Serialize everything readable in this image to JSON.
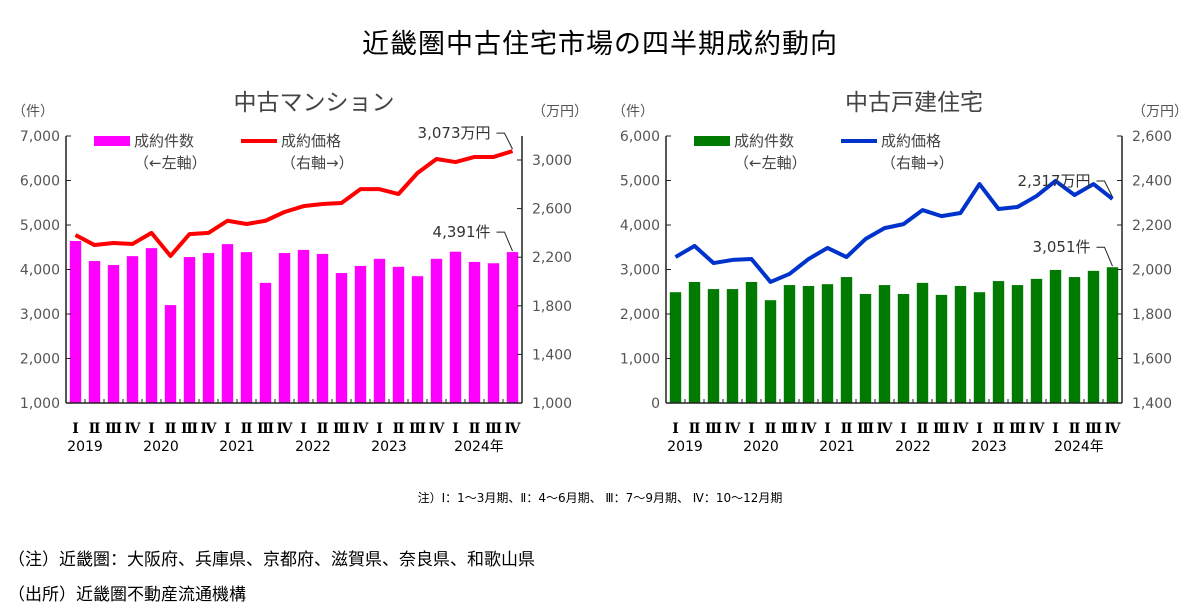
{
  "title": "近畿圏中古住宅市場の四半期成約動向",
  "quarter_note": "注）Ⅰ：1～3月期、Ⅱ：4～6月期、 Ⅲ：7～9月期、 Ⅳ：10～12月期",
  "region_note": "（注）近畿圏：大阪府、兵庫県、京都府、滋賀県、奈良県、和歌山県",
  "source_note": "（出所）近畿圏不動産流通機構",
  "chart_data": [
    {
      "type": "bar",
      "title": "中古マンション",
      "left_axis_unit": "（件）",
      "right_axis_unit": "（万円）",
      "quarter_labels": [
        "Ⅰ",
        "Ⅱ",
        "Ⅲ",
        "Ⅳ",
        "Ⅰ",
        "Ⅱ",
        "Ⅲ",
        "Ⅳ",
        "Ⅰ",
        "Ⅱ",
        "Ⅲ",
        "Ⅳ",
        "Ⅰ",
        "Ⅱ",
        "Ⅲ",
        "Ⅳ",
        "Ⅰ",
        "Ⅱ",
        "Ⅲ",
        "Ⅳ",
        "Ⅰ",
        "Ⅱ",
        "Ⅲ",
        "Ⅳ"
      ],
      "year_labels": [
        "2019",
        "2020",
        "2021",
        "2022",
        "2023",
        "2024年"
      ],
      "left_ylim": [
        1000,
        7000
      ],
      "left_ticks": [
        "1,000",
        "2,000",
        "3,000",
        "4,000",
        "5,000",
        "6,000",
        "7,000"
      ],
      "right_ylim": [
        1000,
        3200
      ],
      "right_ticks": [
        "1,000",
        "1,400",
        "1,800",
        "2,200",
        "2,600",
        "3,000"
      ],
      "bar_color": "#ff00ff",
      "line_color": "#ff0000",
      "legend": [
        {
          "name": "成約件数",
          "sub": "（←左軸）"
        },
        {
          "name": "成約価格",
          "sub": "（右軸→）"
        }
      ],
      "series": [
        {
          "name": "成約件数",
          "axis": "left",
          "kind": "bar",
          "values": [
            4640,
            4190,
            4100,
            4300,
            4480,
            3200,
            4280,
            4370,
            4570,
            4390,
            3700,
            4370,
            4440,
            4350,
            3920,
            4080,
            4240,
            4060,
            3850,
            4240,
            4400,
            4170,
            4140,
            4391
          ]
        },
        {
          "name": "成約価格",
          "axis": "right",
          "kind": "line",
          "values": [
            2383,
            2300,
            2317,
            2309,
            2400,
            2210,
            2390,
            2400,
            2500,
            2473,
            2500,
            2572,
            2620,
            2638,
            2646,
            2760,
            2760,
            2720,
            2893,
            3008,
            2983,
            3025,
            3025,
            3073
          ]
        }
      ],
      "annotations": {
        "price": "3,073万円",
        "count": "4,391件"
      }
    },
    {
      "type": "bar",
      "title": "中古戸建住宅",
      "left_axis_unit": "（件）",
      "right_axis_unit": "（万円）",
      "quarter_labels": [
        "Ⅰ",
        "Ⅱ",
        "Ⅲ",
        "Ⅳ",
        "Ⅰ",
        "Ⅱ",
        "Ⅲ",
        "Ⅳ",
        "Ⅰ",
        "Ⅱ",
        "Ⅲ",
        "Ⅳ",
        "Ⅰ",
        "Ⅱ",
        "Ⅲ",
        "Ⅳ",
        "Ⅰ",
        "Ⅱ",
        "Ⅲ",
        "Ⅳ",
        "Ⅰ",
        "Ⅱ",
        "Ⅲ",
        "Ⅳ"
      ],
      "year_labels": [
        "2019",
        "2020",
        "2021",
        "2022",
        "2023",
        "2024年"
      ],
      "left_ylim": [
        0,
        6000
      ],
      "left_ticks": [
        "0",
        "1,000",
        "2,000",
        "3,000",
        "4,000",
        "5,000",
        "6,000"
      ],
      "right_ylim": [
        1400,
        2600
      ],
      "right_ticks": [
        "1,400",
        "1,600",
        "1,800",
        "2,000",
        "2,200",
        "2,400",
        "2,600"
      ],
      "bar_color": "#007a00",
      "line_color": "#0033cc",
      "legend": [
        {
          "name": "成約件数",
          "sub": "（←左軸）"
        },
        {
          "name": "成約価格",
          "sub": "（右軸→）"
        }
      ],
      "series": [
        {
          "name": "成約件数",
          "axis": "left",
          "kind": "bar",
          "values": [
            2490,
            2720,
            2560,
            2560,
            2720,
            2310,
            2650,
            2630,
            2670,
            2830,
            2450,
            2650,
            2450,
            2700,
            2430,
            2630,
            2490,
            2740,
            2650,
            2790,
            2990,
            2830,
            2970,
            3051
          ]
        },
        {
          "name": "成約価格",
          "axis": "right",
          "kind": "line",
          "values": [
            2056,
            2106,
            2029,
            2043,
            2047,
            1944,
            1980,
            2047,
            2097,
            2056,
            2137,
            2186,
            2204,
            2267,
            2240,
            2254,
            2384,
            2272,
            2281,
            2330,
            2398,
            2335,
            2384,
            2317
          ]
        }
      ],
      "annotations": {
        "price": "2,317万円",
        "count": "3,051件"
      }
    }
  ]
}
